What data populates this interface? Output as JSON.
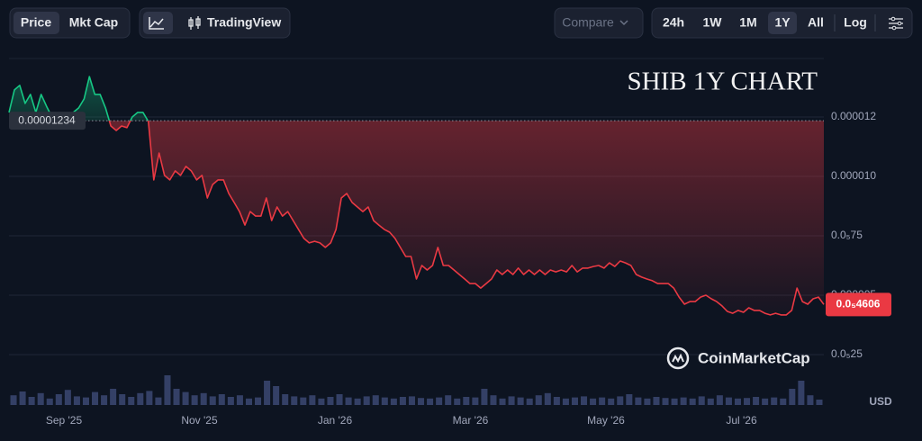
{
  "toolbar": {
    "view_tabs": [
      "Price",
      "Mkt Cap"
    ],
    "tradingview": "TradingView",
    "compare": "Compare",
    "ranges": [
      "24h",
      "1W",
      "1M",
      "1Y",
      "All"
    ],
    "active_range": "1Y",
    "log": "Log"
  },
  "chart_data": {
    "type": "line",
    "title": "SHIB 1Y CHART",
    "brand": "CoinMarketCap",
    "currency": "USD",
    "x_labels": [
      "Sep '25",
      "Nov '25",
      "Jan '26",
      "Mar '26",
      "May '26",
      "Jul '26"
    ],
    "ylim": [
      3.8e-07,
      1.496e-05
    ],
    "yticks": [
      {
        "value": 1.25e-05,
        "label": "0.000012"
      },
      {
        "value": 1e-05,
        "label": "0.000010"
      },
      {
        "value": 7.5e-06,
        "label": "0.0₅75"
      },
      5e-06,
      {
        "value": 2.5e-06,
        "label": "0.0₅25"
      }
    ],
    "grid": true,
    "reference": {
      "value": 1.234e-05,
      "label": "0.00001234"
    },
    "current": {
      "value": 4.606e-06,
      "label": "0.0₅4606"
    },
    "up_color": "#16c784",
    "down_color": "#ea3943",
    "series": [
      {
        "name": "SHIB",
        "values": [
          1.269e-05,
          1.364e-05,
          1.383e-05,
          1.307e-05,
          1.345e-05,
          1.269e-05,
          1.345e-05,
          1.295e-05,
          1.25e-05,
          1.258e-05,
          1.242e-05,
          1.25e-05,
          1.269e-05,
          1.288e-05,
          1.326e-05,
          1.42e-05,
          1.345e-05,
          1.345e-05,
          1.288e-05,
          1.212e-05,
          1.193e-05,
          1.212e-05,
          1.205e-05,
          1.25e-05,
          1.269e-05,
          1.269e-05,
          1.231e-05,
          9.85e-06,
          1.098e-05,
          1.004e-05,
          9.85e-06,
          1.023e-05,
          1.004e-05,
          1.042e-05,
          1.023e-05,
          9.85e-06,
          1.004e-05,
          9.09e-06,
          9.66e-06,
          9.85e-06,
          9.85e-06,
          9.28e-06,
          8.9e-06,
          8.52e-06,
          7.95e-06,
          8.52e-06,
          8.33e-06,
          8.33e-06,
          9.09e-06,
          8.14e-06,
          8.71e-06,
          8.33e-06,
          8.52e-06,
          8.14e-06,
          7.77e-06,
          7.39e-06,
          7.2e-06,
          7.27e-06,
          7.2e-06,
          7.01e-06,
          7.2e-06,
          7.77e-06,
          9.09e-06,
          9.28e-06,
          8.9e-06,
          8.71e-06,
          8.52e-06,
          8.71e-06,
          8.14e-06,
          7.95e-06,
          7.77e-06,
          7.65e-06,
          7.39e-06,
          7.01e-06,
          6.63e-06,
          6.63e-06,
          5.68e-06,
          6.25e-06,
          6.06e-06,
          6.25e-06,
          7.01e-06,
          6.25e-06,
          6.25e-06,
          6.06e-06,
          5.87e-06,
          5.68e-06,
          5.49e-06,
          5.49e-06,
          5.3e-06,
          5.49e-06,
          5.68e-06,
          6.06e-06,
          5.87e-06,
          6.06e-06,
          5.87e-06,
          6.14e-06,
          5.87e-06,
          6.06e-06,
          5.87e-06,
          6.06e-06,
          5.87e-06,
          6.06e-06,
          5.98e-06,
          6.06e-06,
          5.98e-06,
          6.25e-06,
          5.98e-06,
          6.14e-06,
          6.14e-06,
          6.21e-06,
          6.25e-06,
          6.14e-06,
          6.36e-06,
          6.21e-06,
          6.44e-06,
          6.36e-06,
          6.25e-06,
          5.87e-06,
          5.76e-06,
          5.68e-06,
          5.61e-06,
          5.49e-06,
          5.49e-06,
          5.49e-06,
          5.3e-06,
          4.92e-06,
          4.62e-06,
          4.73e-06,
          4.73e-06,
          4.92e-06,
          5e-06,
          4.85e-06,
          4.73e-06,
          4.55e-06,
          4.32e-06,
          4.24e-06,
          4.36e-06,
          4.28e-06,
          4.47e-06,
          4.36e-06,
          4.36e-06,
          4.24e-06,
          4.17e-06,
          4.24e-06,
          4.17e-06,
          4.17e-06,
          4.36e-06,
          5.3e-06,
          4.73e-06,
          4.62e-06,
          4.85e-06,
          4.92e-06,
          4.61e-06
        ]
      }
    ],
    "volume": {
      "color": "#344066",
      "ylim": [
        0,
        100
      ],
      "values": [
        18,
        25,
        15,
        22,
        12,
        20,
        28,
        16,
        14,
        24,
        18,
        30,
        20,
        15,
        22,
        26,
        14,
        55,
        30,
        24,
        18,
        22,
        16,
        20,
        15,
        18,
        12,
        14,
        45,
        35,
        20,
        16,
        14,
        18,
        12,
        15,
        20,
        14,
        12,
        16,
        18,
        14,
        12,
        15,
        16,
        13,
        12,
        14,
        18,
        12,
        15,
        14,
        30,
        18,
        12,
        16,
        14,
        12,
        18,
        22,
        15,
        12,
        14,
        16,
        12,
        14,
        12,
        16,
        20,
        14,
        12,
        15,
        13,
        12,
        14,
        12,
        16,
        12,
        18,
        14,
        12,
        13,
        15,
        12,
        14,
        12,
        30,
        45,
        18,
        10
      ]
    }
  }
}
